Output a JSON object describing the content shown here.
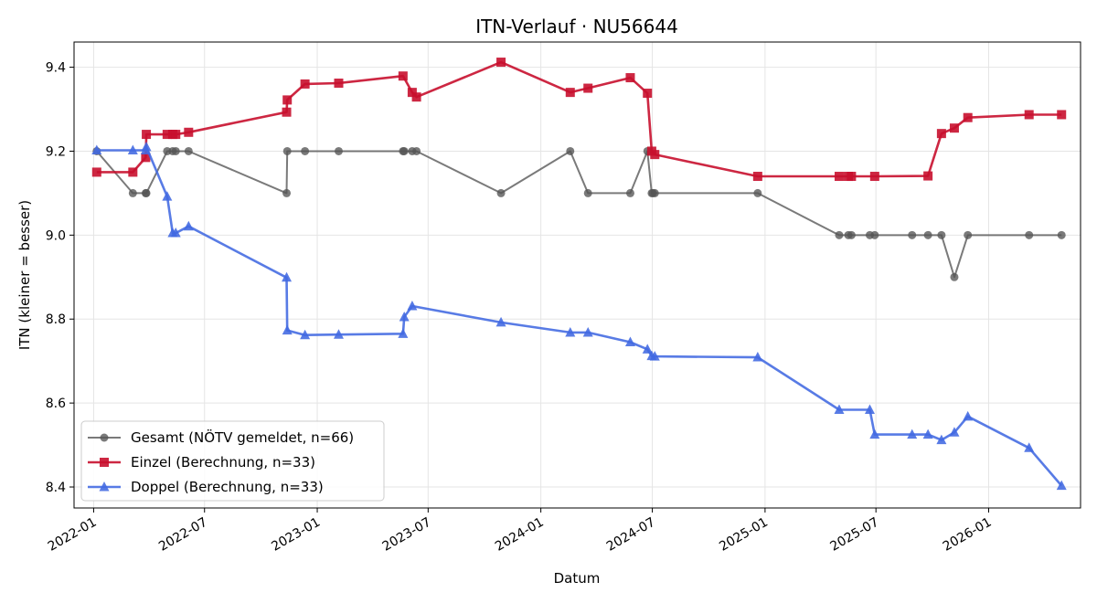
{
  "chart_data": {
    "type": "line",
    "title": "ITN-Verlauf · NU56644",
    "xlabel": "Datum",
    "ylabel": "ITN  (kleiner = besser)",
    "x_axis_type": "date",
    "xlim": [
      "2021-11-30",
      "2026-05-31"
    ],
    "ylim": [
      8.35,
      9.46
    ],
    "yticks": [
      8.4,
      8.6,
      8.8,
      9.0,
      9.2,
      9.4
    ],
    "ytick_labels": [
      "8.4",
      "8.6",
      "8.8",
      "9.0",
      "9.2",
      "9.4"
    ],
    "xticks": [
      "2022-01-01",
      "2022-07-01",
      "2023-01-01",
      "2023-07-01",
      "2024-01-01",
      "2024-07-01",
      "2025-01-01",
      "2025-07-01",
      "2026-01-01"
    ],
    "xtick_labels": [
      "2022-01",
      "2022-07",
      "2023-01",
      "2023-07",
      "2024-01",
      "2024-07",
      "2025-01",
      "2025-07",
      "2026-01"
    ],
    "grid": true,
    "legend_position": "lower-left",
    "series": [
      {
        "name": "Gesamt (NÖTV gemeldet, n=66)",
        "color": "#555555",
        "marker": "circle",
        "x": [
          "2022-01-06",
          "2022-03-06",
          "2022-03-27",
          "2022-03-28",
          "2022-05-01",
          "2022-05-10",
          "2022-05-15",
          "2022-06-05",
          "2022-11-12",
          "2022-11-13",
          "2022-12-12",
          "2023-02-05",
          "2023-05-21",
          "2023-05-23",
          "2023-06-05",
          "2023-06-12",
          "2023-10-28",
          "2024-02-18",
          "2024-03-18",
          "2024-05-26",
          "2024-06-23",
          "2024-06-30",
          "2024-07-02",
          "2024-07-05",
          "2024-12-20",
          "2025-05-02",
          "2025-05-17",
          "2025-05-22",
          "2025-06-21",
          "2025-06-29",
          "2025-08-29",
          "2025-09-24",
          "2025-10-16",
          "2025-11-06",
          "2025-11-28",
          "2026-03-08",
          "2026-04-30"
        ],
        "y": [
          9.2,
          9.1,
          9.1,
          9.1,
          9.2,
          9.2,
          9.2,
          9.2,
          9.1,
          9.2,
          9.2,
          9.2,
          9.2,
          9.2,
          9.2,
          9.2,
          9.1,
          9.2,
          9.1,
          9.1,
          9.2,
          9.1,
          9.1,
          9.1,
          9.1,
          9.0,
          9.0,
          9.0,
          9.0,
          9.0,
          9.0,
          9.0,
          9.0,
          8.9,
          9.0,
          9.0,
          9.0
        ]
      },
      {
        "name": "Einzel (Berechnung, n=33)",
        "color": "#C8102E",
        "marker": "square",
        "x": [
          "2022-01-06",
          "2022-03-06",
          "2022-03-27",
          "2022-03-28",
          "2022-05-01",
          "2022-05-10",
          "2022-05-15",
          "2022-06-05",
          "2022-11-12",
          "2022-11-13",
          "2022-12-12",
          "2023-02-05",
          "2023-05-21",
          "2023-06-05",
          "2023-06-12",
          "2023-10-28",
          "2024-02-18",
          "2024-03-18",
          "2024-05-26",
          "2024-06-23",
          "2024-06-30",
          "2024-07-05",
          "2024-12-20",
          "2025-05-02",
          "2025-05-17",
          "2025-05-22",
          "2025-06-29",
          "2025-09-24",
          "2025-10-16",
          "2025-11-06",
          "2025-11-28",
          "2026-03-08",
          "2026-04-30"
        ],
        "y": [
          9.15,
          9.15,
          9.185,
          9.24,
          9.24,
          9.24,
          9.24,
          9.245,
          9.293,
          9.322,
          9.36,
          9.362,
          9.379,
          9.34,
          9.329,
          9.412,
          9.34,
          9.35,
          9.375,
          9.338,
          9.2,
          9.192,
          9.14,
          9.14,
          9.14,
          9.14,
          9.14,
          9.141,
          9.242,
          9.255,
          9.28,
          9.287,
          9.287
        ]
      },
      {
        "name": "Doppel (Berechnung, n=33)",
        "color": "#4169E1",
        "marker": "triangle",
        "x": [
          "2022-01-06",
          "2022-03-06",
          "2022-03-27",
          "2022-03-28",
          "2022-05-01",
          "2022-05-10",
          "2022-05-15",
          "2022-06-05",
          "2022-11-12",
          "2022-11-13",
          "2022-12-12",
          "2023-02-05",
          "2023-05-21",
          "2023-05-23",
          "2023-06-05",
          "2023-10-28",
          "2024-02-18",
          "2024-03-18",
          "2024-05-26",
          "2024-06-23",
          "2024-06-30",
          "2024-07-05",
          "2024-12-20",
          "2025-05-02",
          "2025-06-21",
          "2025-06-29",
          "2025-08-29",
          "2025-09-24",
          "2025-10-16",
          "2025-11-06",
          "2025-11-28",
          "2026-03-08",
          "2026-04-30"
        ],
        "y": [
          9.202,
          9.202,
          9.202,
          9.21,
          9.092,
          9.005,
          9.005,
          9.021,
          8.899,
          8.773,
          8.762,
          8.763,
          8.765,
          8.805,
          8.831,
          8.792,
          8.768,
          8.768,
          8.745,
          8.728,
          8.712,
          8.711,
          8.709,
          8.584,
          8.584,
          8.525,
          8.525,
          8.525,
          8.512,
          8.53,
          8.568,
          8.493,
          8.403
        ]
      }
    ]
  }
}
